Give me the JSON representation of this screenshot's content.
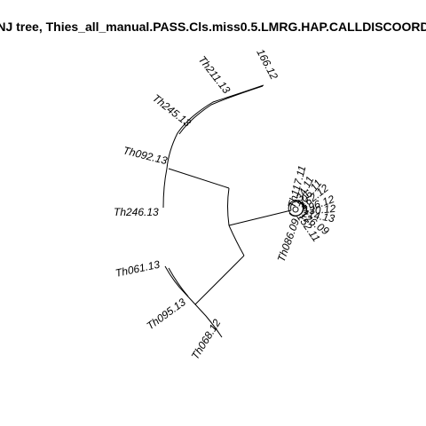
{
  "title": "NJ tree,  Thies_all_manual.PASS.Cls.miss0.5.LMRG.HAP.CALLDISCOORD",
  "tips": {
    "t166": "166.12",
    "th211": "Th211.13",
    "th245": "Th245.13",
    "th092": "Th092.13",
    "th246": "Th246.13",
    "th061": "Th061.13",
    "th095": "Th095.13",
    "th068": "Th068.12",
    "c1": "Th117.11",
    "c2": "134.11",
    "c3": "106.11",
    "c4": "162.12",
    "c5": "196.12",
    "c6": "130.12",
    "c7": "214.13",
    "c8": "126.09",
    "c9": "152.11",
    "c10": "Th086.09"
  },
  "colors": {
    "line": "#000000",
    "background": "#ffffff"
  }
}
